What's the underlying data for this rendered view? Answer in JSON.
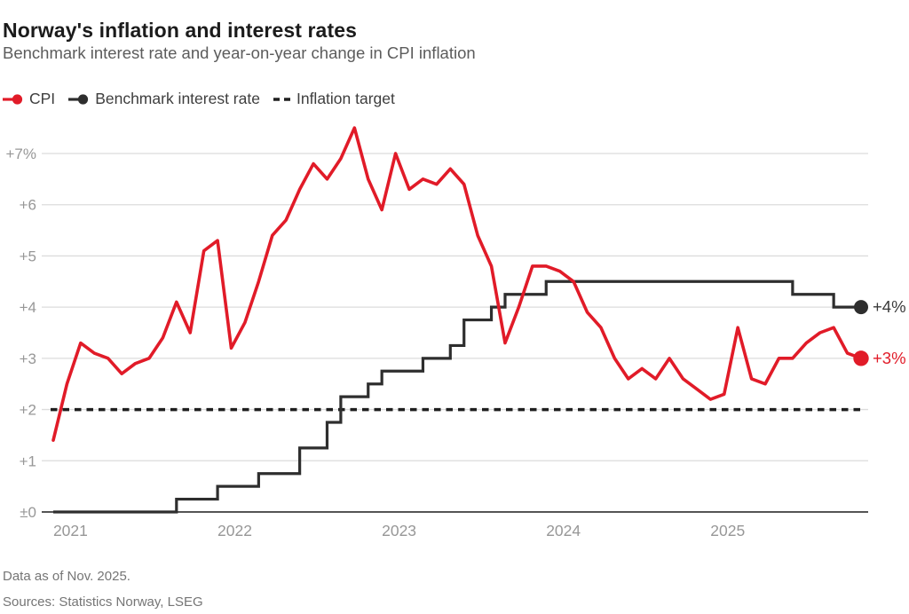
{
  "header": {
    "title": "Norway's inflation and interest rates",
    "subtitle": "Benchmark interest rate and year-on-year change in CPI inflation"
  },
  "legend": [
    {
      "label": "CPI",
      "marker": "line-dot",
      "color": "#e11b28"
    },
    {
      "label": "Benchmark interest rate",
      "marker": "line-dot",
      "color": "#2e2e2e"
    },
    {
      "label": "Inflation target",
      "marker": "dashed-line",
      "color": "#1f1f1f"
    }
  ],
  "colors": {
    "cpi_red": "#e11b28",
    "benchmark_dark": "#2e2e2e",
    "target_dark": "#1f1f1f",
    "grid": "#dcdcdc",
    "axis": "#555555",
    "tick_text": "#979797",
    "end_label_dark": "#3a3a3a"
  },
  "chart_data": {
    "type": "line",
    "title": "Norway's inflation and interest rates",
    "x_start_month": "2020-12",
    "x_end_month": "2025-11",
    "ylim": [
      0,
      7
    ],
    "grid": true,
    "yticks": [
      {
        "value": 7,
        "label": "+7%"
      },
      {
        "value": 6,
        "label": "+6"
      },
      {
        "value": 5,
        "label": "+5"
      },
      {
        "value": 4,
        "label": "+4"
      },
      {
        "value": 3,
        "label": "+3"
      },
      {
        "value": 2,
        "label": "+2"
      },
      {
        "value": 1,
        "label": "+1"
      },
      {
        "value": 0,
        "label": "±0"
      }
    ],
    "xticks": [
      {
        "month": "2021-01",
        "label": "2021"
      },
      {
        "month": "2022-01",
        "label": "2022"
      },
      {
        "month": "2023-01",
        "label": "2023"
      },
      {
        "month": "2024-01",
        "label": "2024"
      },
      {
        "month": "2025-01",
        "label": "2025"
      }
    ],
    "series": [
      {
        "name": "CPI",
        "kind": "monthly-line",
        "color": "#e11b28",
        "unit": "% year-on-year",
        "end_label": "+3%",
        "values": [
          1.4,
          2.5,
          3.3,
          3.1,
          3.0,
          2.7,
          2.9,
          3.0,
          3.4,
          4.1,
          3.5,
          5.1,
          5.3,
          3.2,
          3.7,
          4.5,
          5.4,
          5.7,
          6.3,
          6.8,
          6.5,
          6.9,
          7.5,
          6.5,
          5.9,
          7.0,
          6.3,
          6.5,
          6.4,
          6.7,
          6.4,
          5.4,
          4.8,
          3.3,
          4.0,
          4.8,
          4.8,
          4.7,
          4.5,
          3.9,
          3.6,
          3.0,
          2.6,
          2.8,
          2.6,
          3.0,
          2.6,
          2.4,
          2.2,
          2.3,
          3.6,
          2.6,
          2.5,
          3.0,
          3.0,
          3.3,
          3.5,
          3.6,
          3.1,
          3.0
        ]
      },
      {
        "name": "Benchmark interest rate",
        "kind": "step",
        "color": "#2e2e2e",
        "unit": "%",
        "end_label": "+4%",
        "changes": [
          {
            "month": "2020-12",
            "rate": 0.0
          },
          {
            "month": "2021-09",
            "rate": 0.25
          },
          {
            "month": "2021-12",
            "rate": 0.5
          },
          {
            "month": "2022-03",
            "rate": 0.75
          },
          {
            "month": "2022-06",
            "rate": 1.25
          },
          {
            "month": "2022-08",
            "rate": 1.75
          },
          {
            "month": "2022-09",
            "rate": 2.25
          },
          {
            "month": "2022-11",
            "rate": 2.5
          },
          {
            "month": "2022-12",
            "rate": 2.75
          },
          {
            "month": "2023-03",
            "rate": 3.0
          },
          {
            "month": "2023-05",
            "rate": 3.25
          },
          {
            "month": "2023-06",
            "rate": 3.75
          },
          {
            "month": "2023-08",
            "rate": 4.0
          },
          {
            "month": "2023-09",
            "rate": 4.25
          },
          {
            "month": "2023-12",
            "rate": 4.5
          },
          {
            "month": "2025-06",
            "rate": 4.25
          },
          {
            "month": "2025-09",
            "rate": 4.0
          }
        ]
      }
    ],
    "target_line": {
      "name": "Inflation target",
      "value": 2,
      "style": "dashed",
      "color": "#1f1f1f"
    }
  },
  "footer": {
    "note": "Data as of Nov. 2025.",
    "sources": "Sources: Statistics Norway, LSEG"
  }
}
